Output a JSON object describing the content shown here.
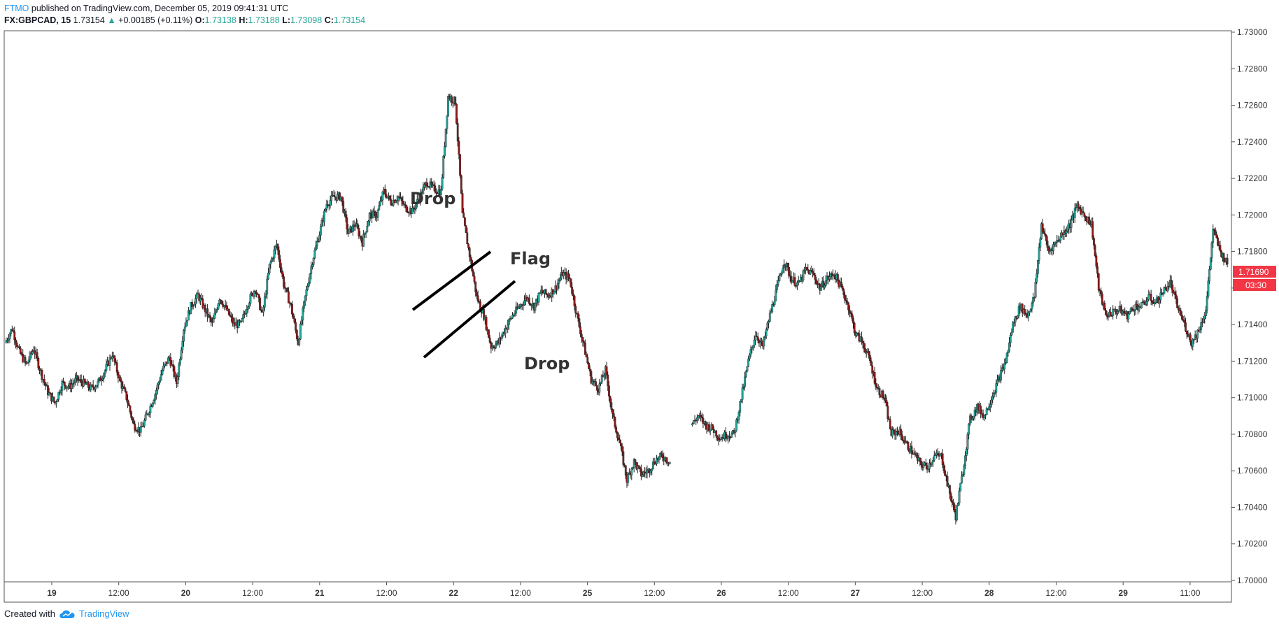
{
  "header": {
    "publisher": "FTMO",
    "published_text": "published on TradingView.com, December 05, 2019 09:41:31 UTC",
    "symbol": "FX:GBPCAD, 15",
    "last": "1.73154",
    "change": "+0.00185 (+0.11%)",
    "o_label": "O:",
    "o_value": "1.73138",
    "h_label": "H:",
    "h_value": "1.73188",
    "l_label": "L:",
    "l_value": "1.73098",
    "c_label": "C:",
    "c_value": "1.73154"
  },
  "footer": {
    "created_with": "Created with",
    "brand": "TradingView"
  },
  "colors": {
    "up": "#26a69a",
    "down": "#ef5350",
    "candle_up": "#26a69a",
    "candle_down": "#8b1a1a",
    "price_tag": "#f23645"
  },
  "chart_data": {
    "type": "line",
    "title": "",
    "ylim": [
      1.7,
      1.73
    ],
    "y_ticks": [
      "1.73000",
      "1.72800",
      "1.72600",
      "1.72400",
      "1.72200",
      "1.72000",
      "1.71800",
      "1.71600",
      "1.71400",
      "1.71200",
      "1.71000",
      "1.70800",
      "1.70600",
      "1.70400",
      "1.70200",
      "1.70000"
    ],
    "x_ticks": [
      "19",
      "12:00",
      "20",
      "12:00",
      "21",
      "12:00",
      "22",
      "12:00",
      "25",
      "12:00",
      "26",
      "12:00",
      "27",
      "12:00",
      "28",
      "12:00",
      "29",
      "11:00"
    ],
    "last_price": "1.71690",
    "countdown": "03:30",
    "grid": false,
    "annotations": [
      "Drop",
      "Flag",
      "Drop"
    ],
    "series": [
      {
        "values": [
          1.713,
          1.7138,
          1.7125,
          1.7118,
          1.7127,
          1.7114,
          1.7103,
          1.7097,
          1.7108,
          1.7106,
          1.711,
          1.7108,
          1.7105,
          1.7108,
          1.7115,
          1.7124,
          1.711,
          1.71,
          1.7085,
          1.7082,
          1.7092,
          1.7102,
          1.7115,
          1.7122,
          1.7108,
          1.7138,
          1.715,
          1.7156,
          1.7148,
          1.714,
          1.7155,
          1.7148,
          1.714,
          1.714,
          1.7152,
          1.716,
          1.7145,
          1.7172,
          1.7184,
          1.7162,
          1.715,
          1.713,
          1.7155,
          1.7175,
          1.719,
          1.7206,
          1.721,
          1.721,
          1.719,
          1.7195,
          1.7185,
          1.72,
          1.72,
          1.7213,
          1.7207,
          1.721,
          1.7204,
          1.7202,
          1.721,
          1.7218,
          1.7214,
          1.7213,
          1.7265,
          1.7262,
          1.72,
          1.7178,
          1.7155,
          1.7145,
          1.7128,
          1.713,
          1.7138,
          1.7145,
          1.715,
          1.7155,
          1.715,
          1.7158,
          1.7156,
          1.716,
          1.7168,
          1.7165,
          1.7145,
          1.7128,
          1.711,
          1.7105,
          1.7115,
          1.709,
          1.7075,
          1.7055,
          1.7065,
          1.7058,
          1.706,
          1.7066,
          1.7068,
          1.7065,
          null,
          null,
          1.7085,
          1.709,
          1.7085,
          1.7083,
          1.7078,
          1.708,
          1.708,
          1.71,
          1.712,
          1.7135,
          1.7128,
          1.7145,
          1.716,
          1.7175,
          1.7165,
          1.7162,
          1.717,
          1.7168,
          1.716,
          1.7165,
          1.7168,
          1.716,
          1.715,
          1.7135,
          1.713,
          1.712,
          1.7105,
          1.71,
          1.708,
          1.7082,
          1.7075,
          1.707,
          1.7064,
          1.7062,
          1.7068,
          1.7068,
          1.705,
          1.7035,
          1.706,
          1.7088,
          1.7095,
          1.709,
          1.71,
          1.711,
          1.712,
          1.714,
          1.715,
          1.7145,
          1.7155,
          1.7195,
          1.718,
          1.7185,
          1.719,
          1.7195,
          1.7205,
          1.72,
          1.7195,
          1.716,
          1.7145,
          1.7147,
          1.7148,
          1.7145,
          1.715,
          1.715,
          1.7155,
          1.7152,
          1.7158,
          1.7163,
          1.715,
          1.714,
          1.713,
          1.7137,
          1.7148,
          1.7192,
          1.718,
          1.7173
        ]
      }
    ]
  }
}
